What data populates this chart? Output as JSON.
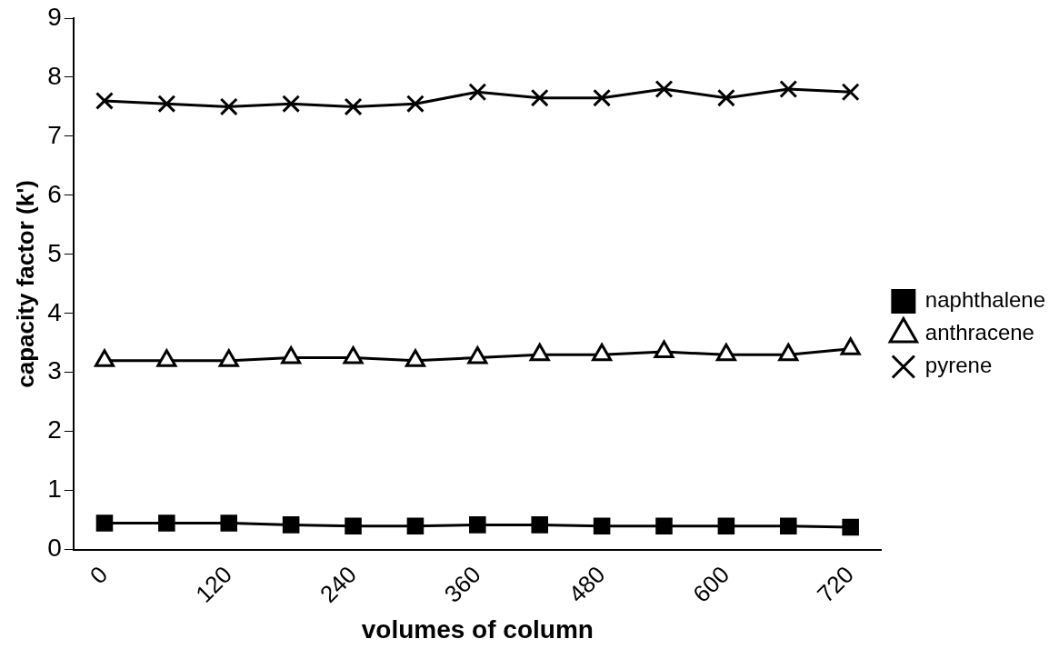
{
  "chart_data": {
    "type": "line",
    "xlabel": "volumes of column",
    "ylabel": "capacity factor (k')",
    "categories": [
      "0",
      null,
      "120",
      null,
      "240",
      null,
      "360",
      null,
      "480",
      null,
      "600",
      null,
      "720"
    ],
    "ylim": [
      0,
      9
    ],
    "yticks": [
      0,
      1,
      2,
      3,
      4,
      5,
      6,
      7,
      8,
      9
    ],
    "grid": false,
    "legend": "right",
    "line_style": "solid",
    "series": [
      {
        "name": "naphthalene",
        "color": "#000000",
        "marker": "square",
        "values": [
          0.45,
          0.45,
          0.45,
          0.42,
          0.4,
          0.4,
          0.42,
          0.42,
          0.4,
          0.4,
          0.4,
          0.4,
          0.38
        ]
      },
      {
        "name": "anthracene",
        "color": "#000000",
        "marker": "triangle",
        "values": [
          3.2,
          3.2,
          3.2,
          3.25,
          3.25,
          3.2,
          3.25,
          3.3,
          3.3,
          3.35,
          3.3,
          3.3,
          3.4
        ]
      },
      {
        "name": "pyrene",
        "color": "#000000",
        "marker": "cross",
        "values": [
          7.6,
          7.55,
          7.5,
          7.55,
          7.5,
          7.55,
          7.75,
          7.65,
          7.65,
          7.8,
          7.65,
          7.8,
          7.75
        ]
      }
    ]
  }
}
